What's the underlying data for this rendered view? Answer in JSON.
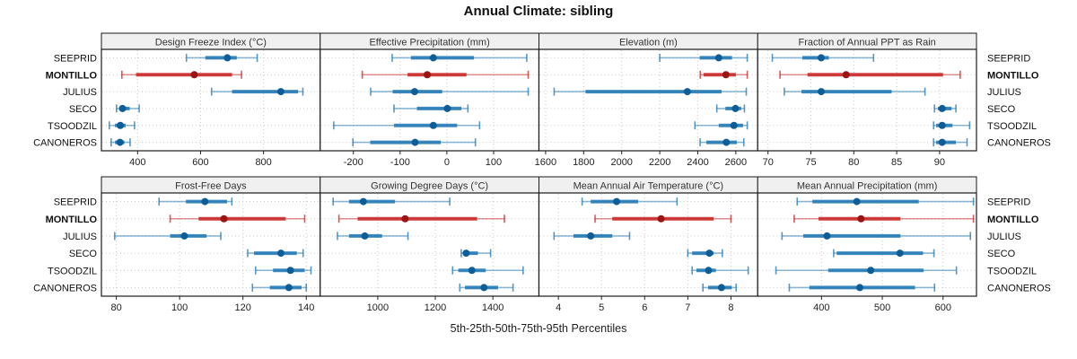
{
  "title": "Annual Climate: sibling",
  "footer": "5th-25th-50th-75th-95th Percentiles",
  "categories": [
    "SEEPRID",
    "MONTILLO",
    "JULIUS",
    "SECO",
    "TSOODZIL",
    "CANONEROS"
  ],
  "highlight_category": "MONTILLO",
  "colors": {
    "blue": "#1f77b4",
    "blue_dot": "#0f5d96",
    "red": "#c82323",
    "red_dot": "#9c1313",
    "grid": "#c9c9c9",
    "border": "#1a1a1a",
    "header_bg": "#f0f0f0",
    "header_text": "#333333",
    "text": "#111111"
  },
  "chart_data": {
    "type": "scatter",
    "style": "five-number-summary interval plot (whisker 5th-95th, thick band 25th-75th, dot median)",
    "percentiles": [
      5,
      25,
      50,
      75,
      95
    ],
    "legend_position": "none",
    "grid": "dotted",
    "panels": [
      {
        "title": "Design Freeze Index (°C)",
        "row": 0,
        "col": 0,
        "xlim": [
          285,
          980
        ],
        "ticks": [
          400,
          600,
          800
        ],
        "values": [
          [
            555,
            615,
            685,
            715,
            780
          ],
          [
            350,
            395,
            580,
            700,
            730
          ],
          [
            635,
            700,
            855,
            910,
            925
          ],
          [
            333,
            342,
            352,
            375,
            405
          ],
          [
            310,
            328,
            345,
            362,
            390
          ],
          [
            316,
            328,
            344,
            358,
            376
          ]
        ]
      },
      {
        "title": "Effective Precipitation (mm)",
        "row": 0,
        "col": 1,
        "xlim": [
          -271,
          197
        ],
        "ticks": [
          -200,
          -100,
          0,
          100
        ],
        "values": [
          [
            -117,
            -77,
            -29,
            58,
            171
          ],
          [
            -181,
            -84,
            -42,
            42,
            174
          ],
          [
            -163,
            -116,
            -69,
            -10,
            174
          ],
          [
            -113,
            -64,
            1,
            31,
            45
          ],
          [
            -242,
            -113,
            -29,
            22,
            70
          ],
          [
            -201,
            -164,
            -68,
            -13,
            61
          ]
        ]
      },
      {
        "title": "Elevation (m)",
        "row": 0,
        "col": 2,
        "xlim": [
          1565,
          2715
        ],
        "ticks": [
          1600,
          1800,
          2000,
          2200,
          2400,
          2600
        ],
        "values": [
          [
            2200,
            2410,
            2510,
            2580,
            2660
          ],
          [
            2413,
            2430,
            2548,
            2600,
            2660
          ],
          [
            1645,
            1810,
            2345,
            2525,
            2655
          ],
          [
            2500,
            2545,
            2598,
            2628,
            2645
          ],
          [
            2385,
            2510,
            2590,
            2638,
            2660
          ],
          [
            2412,
            2445,
            2550,
            2605,
            2642
          ]
        ]
      },
      {
        "title": "Fraction of Annual PPT as Rain",
        "row": 0,
        "col": 3,
        "xlim": [
          68.8,
          94.3
        ],
        "ticks": [
          70,
          75,
          80,
          85,
          90
        ],
        "values": [
          [
            70.5,
            74.0,
            76.2,
            77.1,
            82.3
          ],
          [
            71.4,
            74.6,
            79.1,
            90.4,
            92.4
          ],
          [
            71.9,
            73.9,
            76.2,
            84.4,
            88.3
          ],
          [
            89.4,
            89.8,
            90.3,
            91.4,
            91.9
          ],
          [
            89.3,
            89.6,
            90.3,
            91.5,
            93.5
          ],
          [
            89.3,
            89.6,
            90.3,
            91.9,
            93.2
          ]
        ]
      },
      {
        "title": "Frost-Free Days",
        "row": 1,
        "col": 0,
        "xlim": [
          75.3,
          144.4
        ],
        "ticks": [
          80,
          100,
          120,
          140
        ],
        "values": [
          [
            93.5,
            102,
            108,
            115,
            116.5
          ],
          [
            97,
            106,
            114,
            133.5,
            139.5
          ],
          [
            79.5,
            97,
            101.5,
            108.5,
            113
          ],
          [
            121.5,
            123.5,
            132,
            137,
            139
          ],
          [
            124,
            129.5,
            135,
            139.5,
            141.5
          ],
          [
            123,
            128.5,
            134.5,
            138.5,
            140
          ]
        ]
      },
      {
        "title": "Growing Degree Days (°C)",
        "row": 1,
        "col": 1,
        "xlim": [
          800,
          1560
        ],
        "ticks": [
          1000,
          1200,
          1400
        ],
        "values": [
          [
            845,
            900,
            950,
            1060,
            1250
          ],
          [
            865,
            930,
            1095,
            1345,
            1440
          ],
          [
            860,
            900,
            955,
            1015,
            1105
          ],
          [
            1290,
            1297,
            1307,
            1348,
            1392
          ],
          [
            1260,
            1280,
            1327,
            1375,
            1505
          ],
          [
            1285,
            1303,
            1369,
            1418,
            1470
          ]
        ]
      },
      {
        "title": "Mean Annual Air Temperature (°C)",
        "row": 1,
        "col": 2,
        "xlim": [
          3.55,
          8.62
        ],
        "ticks": [
          4,
          5,
          6,
          7,
          8
        ],
        "values": [
          [
            4.55,
            4.75,
            5.35,
            5.85,
            6.75
          ],
          [
            4.85,
            5.25,
            6.38,
            7.6,
            8.0
          ],
          [
            3.9,
            4.35,
            4.75,
            5.25,
            5.65
          ],
          [
            7.0,
            7.1,
            7.5,
            7.6,
            7.8
          ],
          [
            7.1,
            7.2,
            7.48,
            7.65,
            8.4
          ],
          [
            7.35,
            7.47,
            7.78,
            8.02,
            8.12
          ]
        ]
      },
      {
        "title": "Mean Annual Precipitation (mm)",
        "row": 1,
        "col": 3,
        "xlim": [
          295,
          655
        ],
        "ticks": [
          400,
          500,
          600
        ],
        "values": [
          [
            360,
            385,
            458,
            560,
            650
          ],
          [
            355,
            395,
            465,
            530,
            650
          ],
          [
            335,
            370,
            409,
            530,
            645
          ],
          [
            420,
            425,
            529,
            567,
            585
          ],
          [
            325,
            411,
            481,
            568,
            622
          ],
          [
            347,
            380,
            463,
            554,
            586
          ]
        ]
      }
    ]
  }
}
